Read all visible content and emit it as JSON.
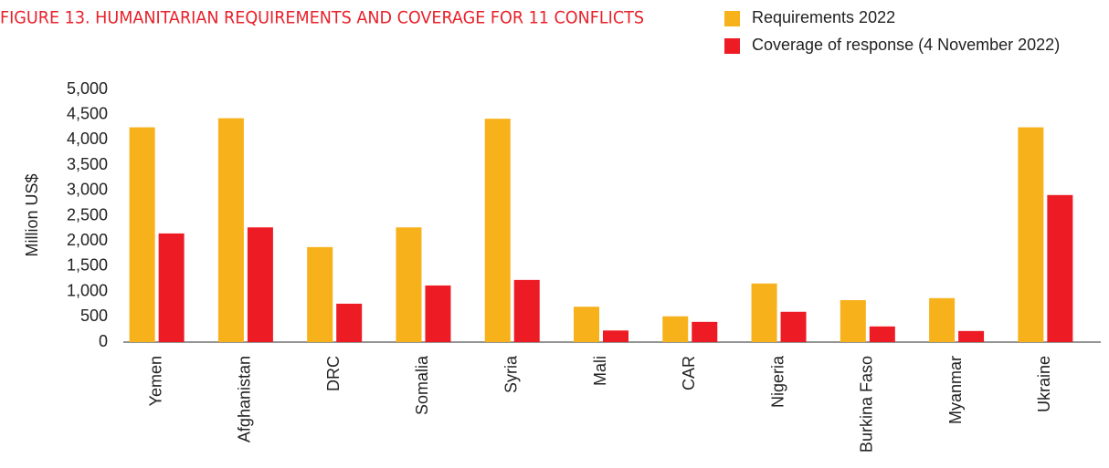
{
  "chart_data": {
    "type": "bar",
    "title": "FIGURE 13. HUMANITARIAN REQUIREMENTS AND COVERAGE FOR 11 CONFLICTS",
    "y_label": "Million US$",
    "categories": [
      "Yemen",
      "Afghanistan",
      "DRC",
      "Somalia",
      "Syria",
      "Mali",
      "CAR",
      "Nigeria",
      "Burkina Faso",
      "Myanmar",
      "Ukraine"
    ],
    "series": [
      {
        "name": "Requirements 2022",
        "color": "#f7b11b",
        "values": [
          4250,
          4430,
          1880,
          2270,
          4420,
          700,
          510,
          1160,
          830,
          870,
          4250
        ]
      },
      {
        "name": "Coverage of response (4 November 2022)",
        "color": "#ed1c24",
        "values": [
          2150,
          2270,
          760,
          1120,
          1230,
          230,
          400,
          600,
          310,
          220,
          2910
        ]
      }
    ],
    "ylim": [
      0,
      5000
    ],
    "yticks": [
      0,
      500,
      {
        "value": 1000,
        "label": "1,000"
      },
      {
        "value": 1500,
        "label": "1,500"
      },
      {
        "value": 2000,
        "label": "2,000"
      },
      {
        "value": 2500,
        "label": "2,500"
      },
      {
        "value": 3000,
        "label": "3,000"
      },
      {
        "value": 3500,
        "label": "3,500"
      },
      {
        "value": 4000,
        "label": "4,000"
      },
      {
        "value": 4500,
        "label": "4,500"
      },
      {
        "value": 5000,
        "label": "5,000"
      }
    ],
    "legend": "top-right"
  }
}
